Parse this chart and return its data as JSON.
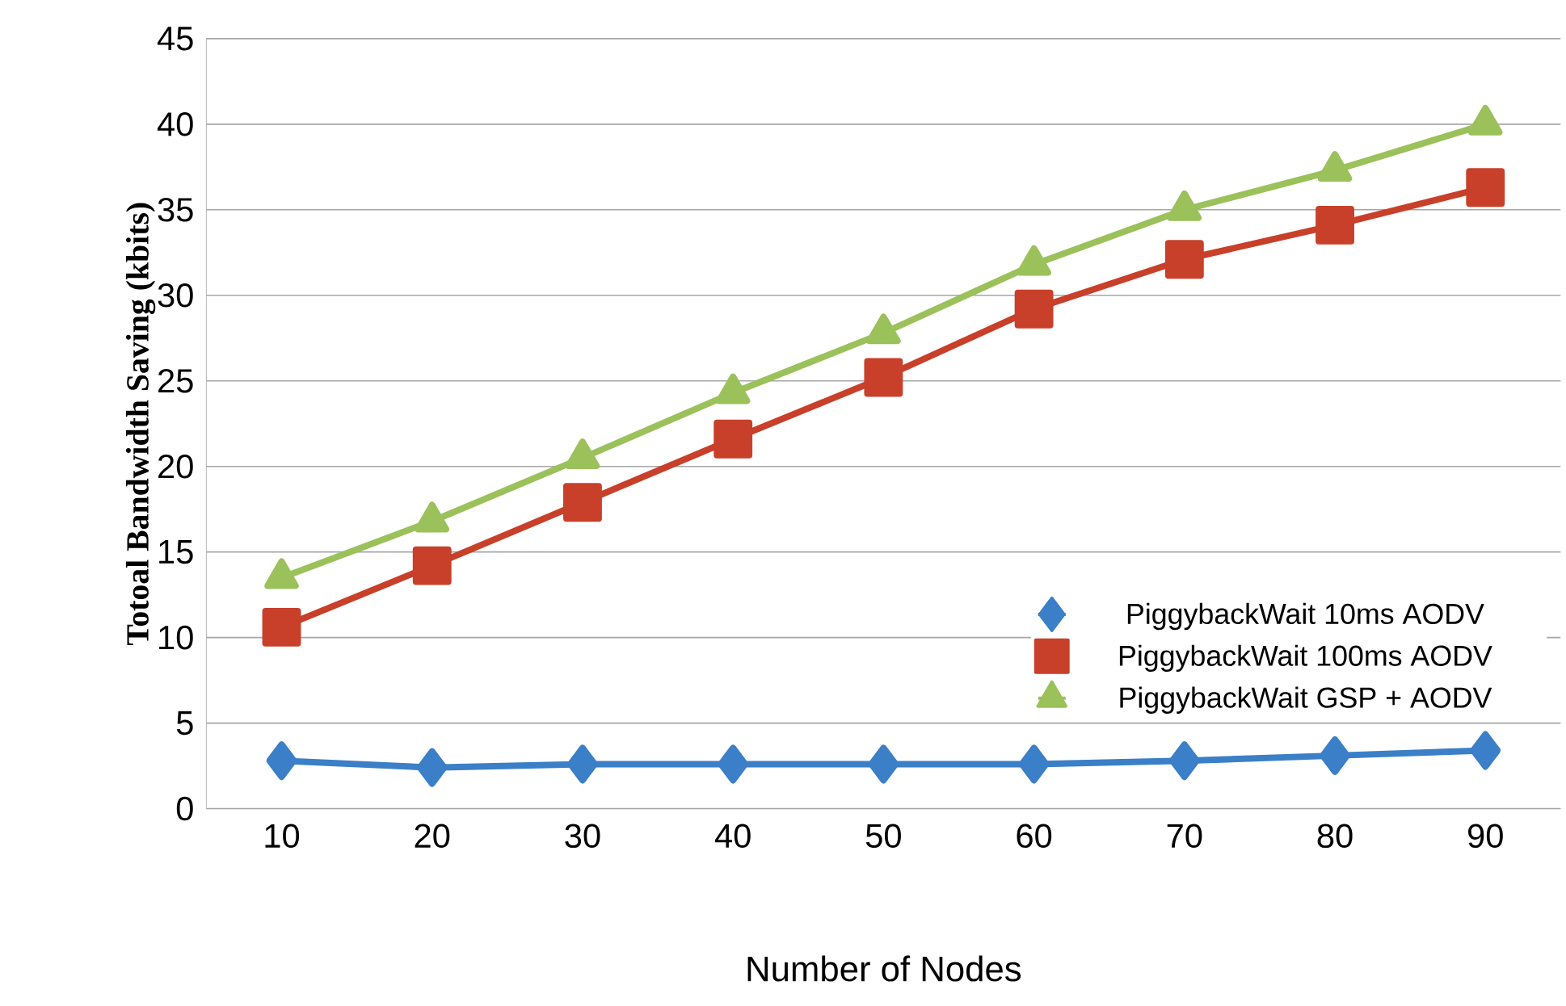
{
  "chart_data": {
    "type": "line",
    "xlabel": "Number of Nodes",
    "ylabel": "Totoal Bandwidth Saving (kbits)",
    "categories": [
      "10",
      "20",
      "30",
      "40",
      "50",
      "60",
      "70",
      "80",
      "90"
    ],
    "ylim": [
      0,
      45
    ],
    "yticks": [
      0,
      5,
      10,
      15,
      20,
      25,
      30,
      35,
      40,
      45
    ],
    "grid": "y",
    "legend": "right",
    "series": [
      {
        "name": "PiggybackWait 10ms AODV",
        "color": "#3a7fc8",
        "marker": "diamond",
        "values": [
          2.8,
          2.4,
          2.6,
          2.6,
          2.6,
          2.6,
          2.8,
          3.1,
          3.4
        ]
      },
      {
        "name": "PiggybackWait 100ms AODV",
        "color": "#c8402a",
        "marker": "square",
        "values": [
          10.6,
          14.2,
          17.9,
          21.6,
          25.2,
          29.2,
          32.1,
          34.1,
          36.3
        ]
      },
      {
        "name": "PiggybackWait GSP + AODV",
        "color": "#9bc15a",
        "marker": "triangle",
        "values": [
          13.5,
          16.8,
          20.5,
          24.3,
          27.8,
          31.8,
          35.0,
          37.3,
          40.0
        ]
      }
    ]
  }
}
